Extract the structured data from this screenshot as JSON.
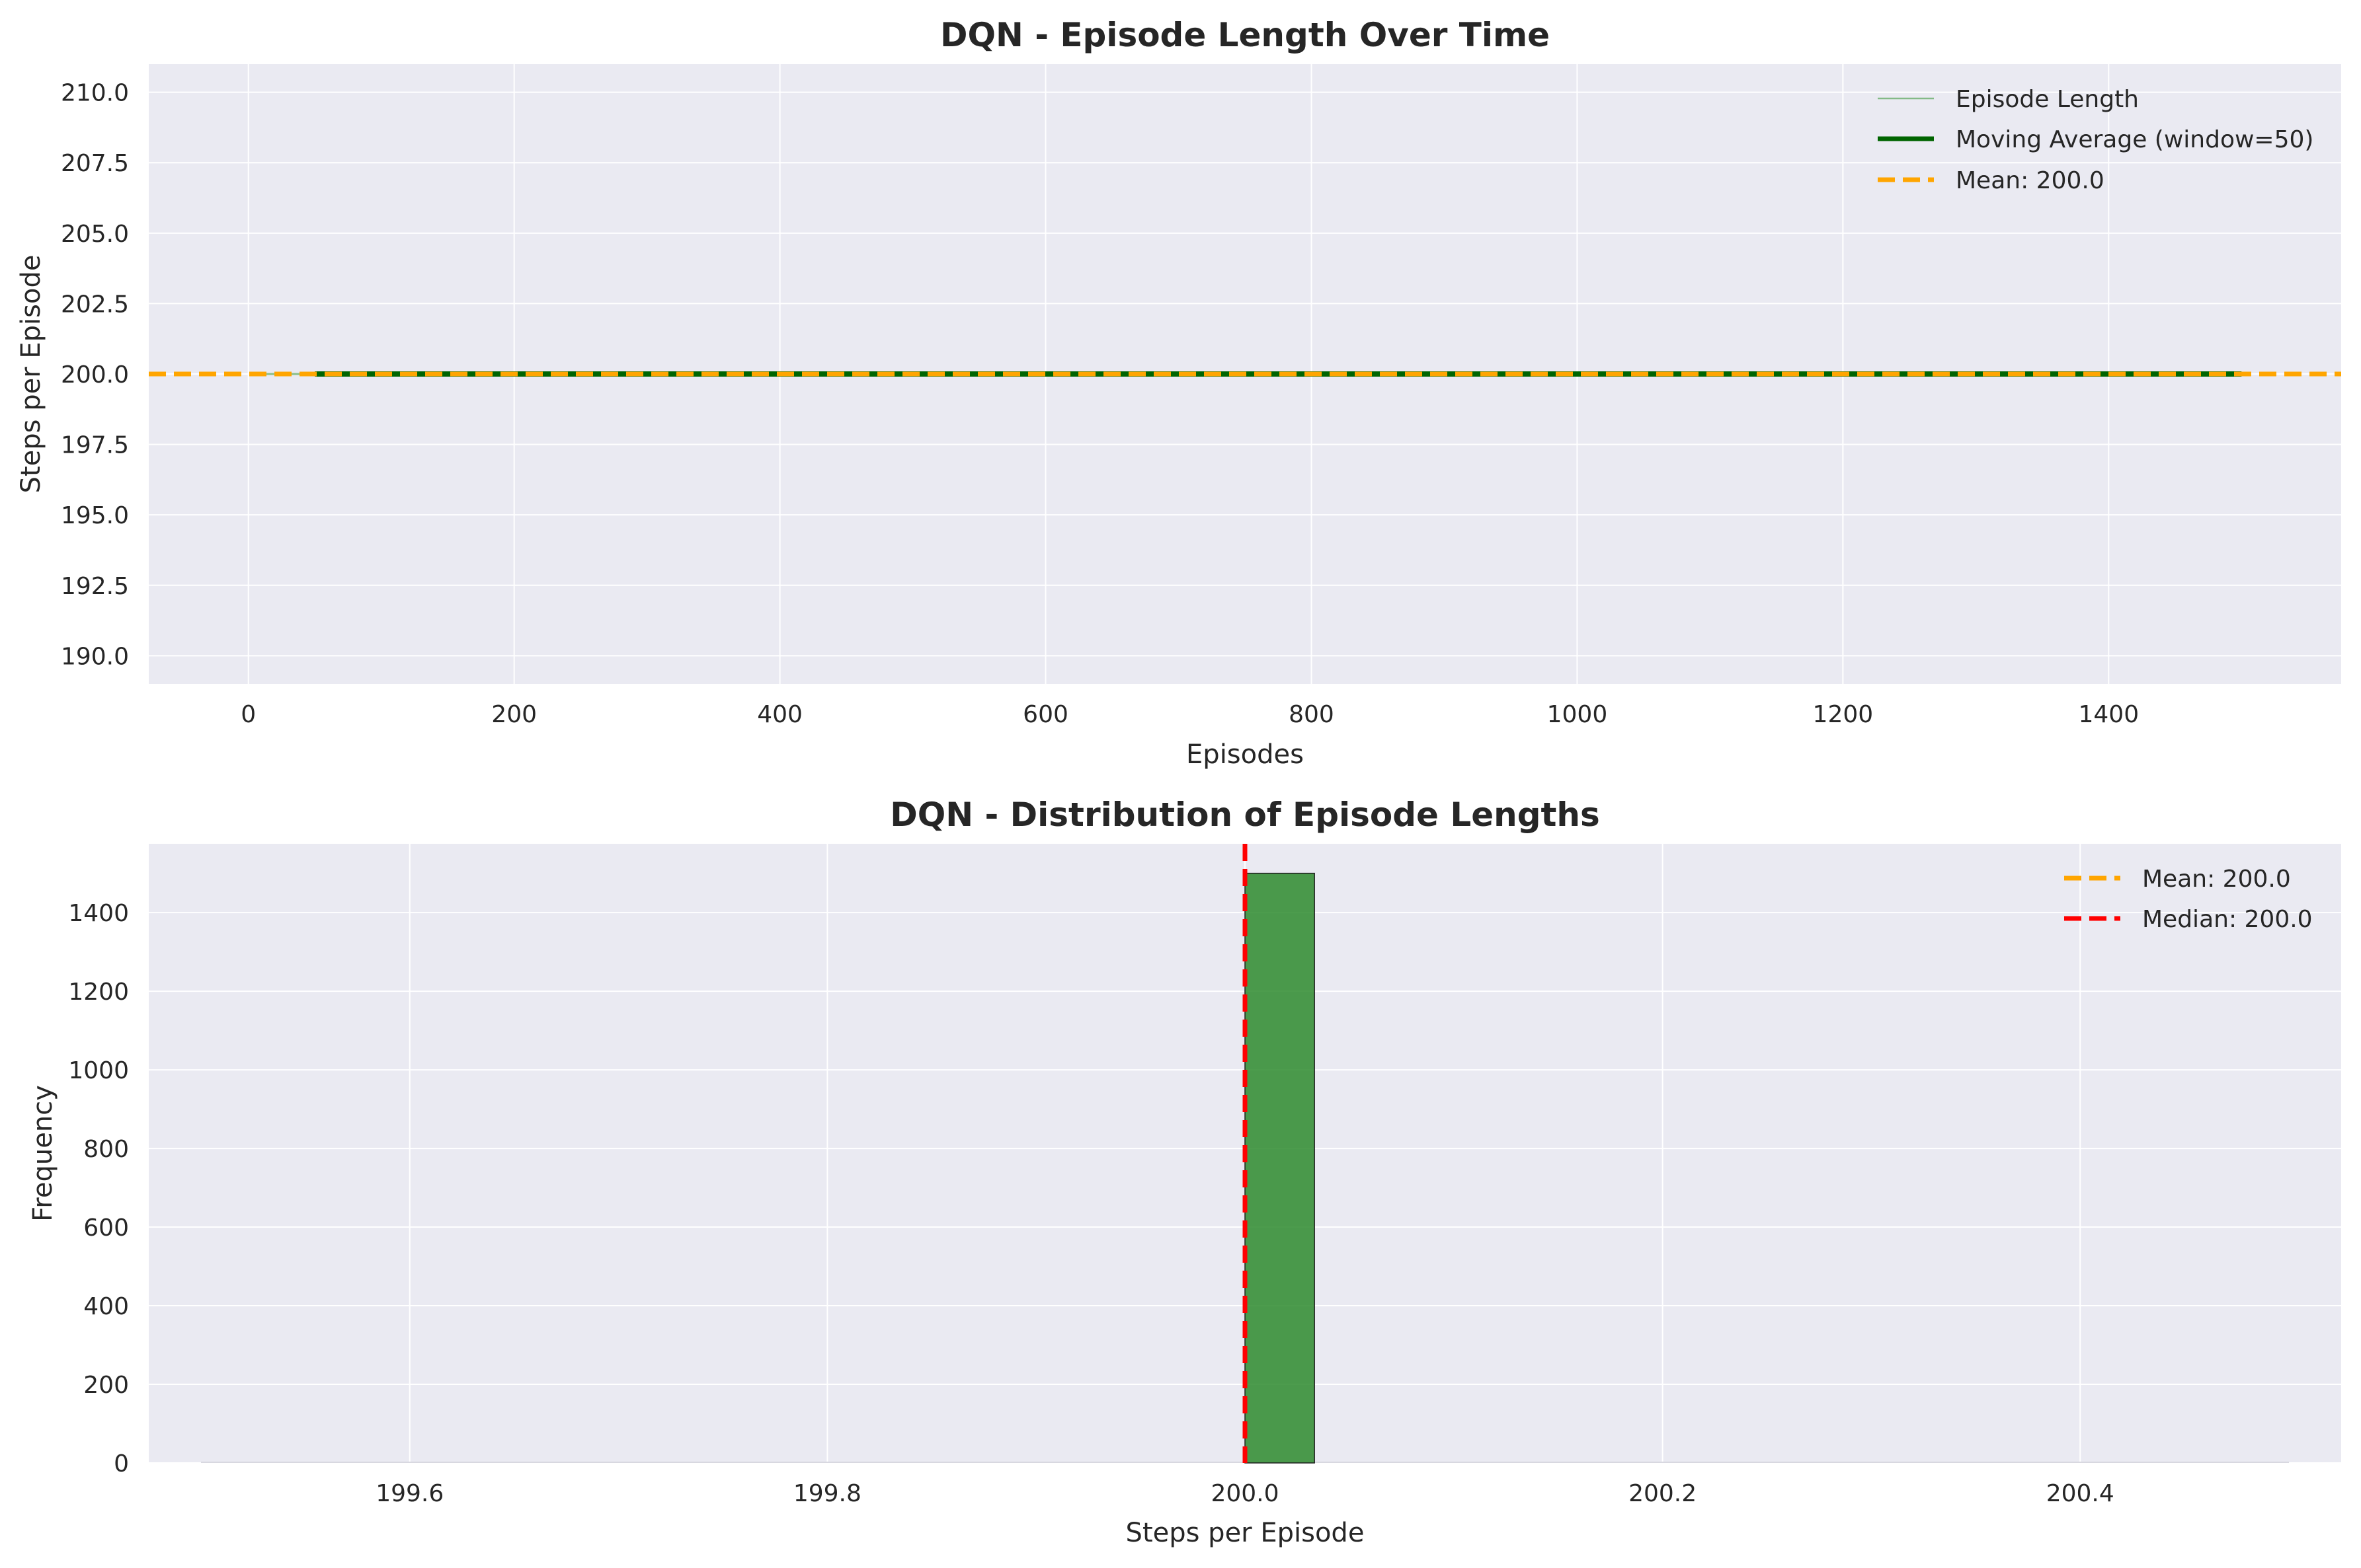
{
  "chart_data": [
    {
      "type": "line",
      "title": "DQN - Episode Length Over Time",
      "xlabel": "Episodes",
      "ylabel": "Steps per Episode",
      "xlim": [
        -75,
        1575
      ],
      "ylim": [
        189.0,
        211.0
      ],
      "xticks": [
        0,
        200,
        400,
        600,
        800,
        1000,
        1200,
        1400
      ],
      "yticks": [
        "190.0",
        "192.5",
        "195.0",
        "197.5",
        "200.0",
        "202.5",
        "205.0",
        "207.5",
        "210.0"
      ],
      "grid": true,
      "legend_position": "top-right",
      "series": [
        {
          "name": "Episode Length",
          "x": [
            1,
            1500
          ],
          "values": [
            200,
            200
          ],
          "color": "#5aa65a"
        },
        {
          "name": "Moving Average (window=50)",
          "x": [
            50,
            1500
          ],
          "values": [
            200,
            200
          ],
          "color": "#006400"
        },
        {
          "name": "Mean: 200.0",
          "kind": "hline",
          "value": 200.0,
          "color": "#ffa500"
        }
      ]
    },
    {
      "type": "bar",
      "title": "DQN - Distribution of Episode Lengths",
      "xlabel": "Steps per Episode",
      "ylabel": "Frequency",
      "xlim": [
        199.475,
        200.525
      ],
      "ylim": [
        0,
        1575
      ],
      "xticks": [
        "199.6",
        "199.8",
        "200.0",
        "200.2",
        "200.4"
      ],
      "yticks": [
        0,
        200,
        400,
        600,
        800,
        1000,
        1200,
        1400
      ],
      "grid": true,
      "legend_position": "top-right",
      "bins": [
        {
          "x0": 200.0,
          "x1": 200.0333,
          "count": 1500
        }
      ],
      "bar_color": "#2e8b2e",
      "reference_lines": [
        {
          "name": "Mean: 200.0",
          "value": 200.0,
          "color": "#ffa500"
        },
        {
          "name": "Median: 200.0",
          "value": 200.0,
          "color": "#ff0000"
        }
      ]
    }
  ]
}
